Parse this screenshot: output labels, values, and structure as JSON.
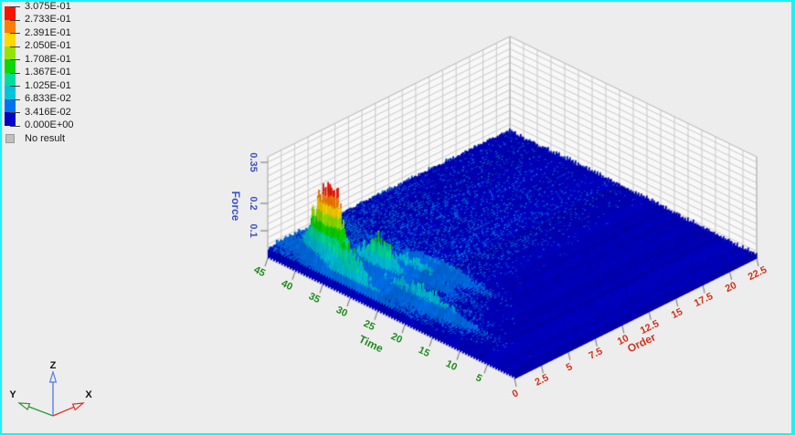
{
  "window": {
    "background": "#EDEDED",
    "border_color": "#1CF2F2"
  },
  "legend": {
    "levels": [
      "3.075E-01",
      "2.733E-01",
      "2.391E-01",
      "2.050E-01",
      "1.708E-01",
      "1.367E-01",
      "1.025E-01",
      "6.833E-02",
      "3.416E-02",
      "0.000E+00"
    ],
    "band_colors_top_to_bottom": [
      "#F81400",
      "#FF7D00",
      "#FFD800",
      "#93E400",
      "#0CD800",
      "#00DC9B",
      "#00C3DC",
      "#0073F0",
      "#0000C8"
    ],
    "no_result": {
      "label": "No result",
      "color": "#C0C0C0"
    }
  },
  "triad": {
    "labels": {
      "x": "X",
      "y": "Y",
      "z": "Z"
    },
    "colors": {
      "x": "#E03028",
      "y": "#2E9632",
      "z": "#5078E6",
      "text": "#111111"
    }
  },
  "chart_data": {
    "type": "surface",
    "title": "",
    "force_axis": {
      "label": "Force",
      "color": "#3C50C8",
      "ticks": [
        "0.1",
        "0.2",
        "0.35"
      ],
      "tick_values": [
        0.1,
        0.2,
        0.35
      ],
      "range": [
        0,
        0.37
      ]
    },
    "time_axis": {
      "label": "Time",
      "color": "#1E8C1E",
      "ticks": [
        "5",
        "10",
        "15",
        "20",
        "25",
        "30",
        "35",
        "40",
        "45"
      ],
      "tick_values": [
        5,
        10,
        15,
        20,
        25,
        30,
        35,
        40,
        45
      ],
      "range": [
        0,
        45
      ]
    },
    "order_axis": {
      "label": "Order",
      "color": "#D2321E",
      "ticks": [
        "0",
        "2.5",
        "5",
        "7.5",
        "10",
        "12.5",
        "15",
        "17.5",
        "20",
        "22.5"
      ],
      "tick_values": [
        0,
        2.5,
        5,
        7.5,
        10,
        12.5,
        15,
        17.5,
        20,
        22.5
      ],
      "range": [
        0,
        22.5
      ]
    },
    "value_range": [
      0.0,
      0.3075
    ],
    "contour_step": 0.0341667,
    "grid": {
      "wall_force_step": 0.025,
      "floor_time_step": 2.5,
      "floor_order_step": 1.25
    },
    "surface_model": {
      "description": "Order-tracked force waterfall: dark-blue low-level carpet over the whole time/order plane, a dominant order ridge near order 1.8 peaking at ~0.31 around time 37, secondary ridges at orders ~0.9 and ~3 (green/teal peaks near time 30-33), cyan streaks along low orders for time 8-25, levels fading toward time 0 and high orders.",
      "seed": 77,
      "t_step": 0.5,
      "o_steps": 240,
      "base_noise": [
        0.012,
        0.01
      ],
      "plateau": {
        "amp": 0.018,
        "t_start": 3,
        "t_full": 24,
        "order_decay": 0.35
      },
      "ridges": [
        {
          "order": 0.15,
          "sigma": 0.3,
          "base": 0.004,
          "peaks": [
            {
              "t": 30.0,
              "amp": 0.08,
              "tw": 4.5
            }
          ]
        },
        {
          "order": 0.9,
          "sigma": 0.45,
          "base": 0.01,
          "peaks": [
            {
              "t": 33.0,
              "amp": 0.1,
              "tw": 4.0
            }
          ]
        },
        {
          "order": 1.8,
          "sigma": 0.5,
          "base": 0.014,
          "peaks": [
            {
              "t": 20.0,
              "amp": 0.05,
              "tw": 7.0
            },
            {
              "t": 37.5,
              "amp": 0.32,
              "tw": 2.9
            }
          ]
        },
        {
          "order": 3.0,
          "sigma": 0.5,
          "base": 0.01,
          "peaks": [
            {
              "t": 30.5,
              "amp": 0.115,
              "tw": 3.5
            }
          ]
        },
        {
          "order": 4.3,
          "sigma": 0.55,
          "base": 0.007,
          "peaks": [
            {
              "t": 27.0,
              "amp": 0.05,
              "tw": 5.0
            }
          ]
        },
        {
          "order": 5.8,
          "sigma": 0.6,
          "base": 0.005,
          "peaks": [
            {
              "t": 24.0,
              "amp": 0.03,
              "tw": 6.0
            }
          ]
        }
      ],
      "clamp_max": 0.315
    }
  }
}
